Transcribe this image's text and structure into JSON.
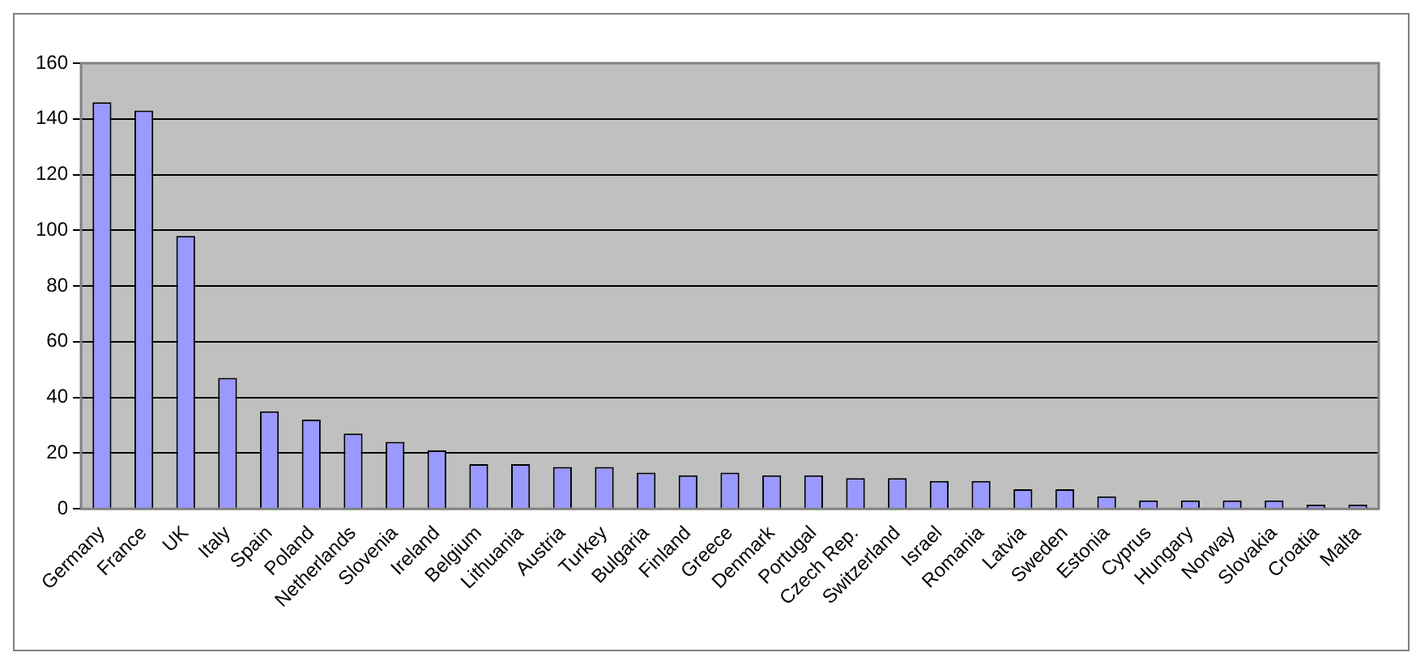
{
  "chart_data": {
    "type": "bar",
    "categories": [
      "Germany",
      "France",
      "UK",
      "Italy",
      "Spain",
      "Poland",
      "Netherlands",
      "Slovenia",
      "Ireland",
      "Belgium",
      "Lithuania",
      "Austria",
      "Turkey",
      "Bulgaria",
      "Finland",
      "Greece",
      "Denmark",
      "Portugal",
      "Czech Rep.",
      "Switzerland",
      "Israel",
      "Romania",
      "Latvia",
      "Sweden",
      "Estonia",
      "Cyprus",
      "Hungary",
      "Norway",
      "Slovakia",
      "Croatia",
      "Malta"
    ],
    "values": [
      146,
      143,
      98,
      47,
      35,
      32,
      27,
      24,
      21,
      16,
      16,
      15,
      15,
      13,
      12,
      13,
      12,
      12,
      11,
      11,
      10,
      10,
      7,
      7,
      4.5,
      3,
      3,
      3,
      3,
      1.5,
      1.5
    ],
    "color": "#9999ff",
    "ylim": [
      0,
      160
    ],
    "yticks": [
      0,
      20,
      40,
      60,
      80,
      100,
      120,
      140,
      160
    ],
    "grid": "y",
    "legend": false
  }
}
